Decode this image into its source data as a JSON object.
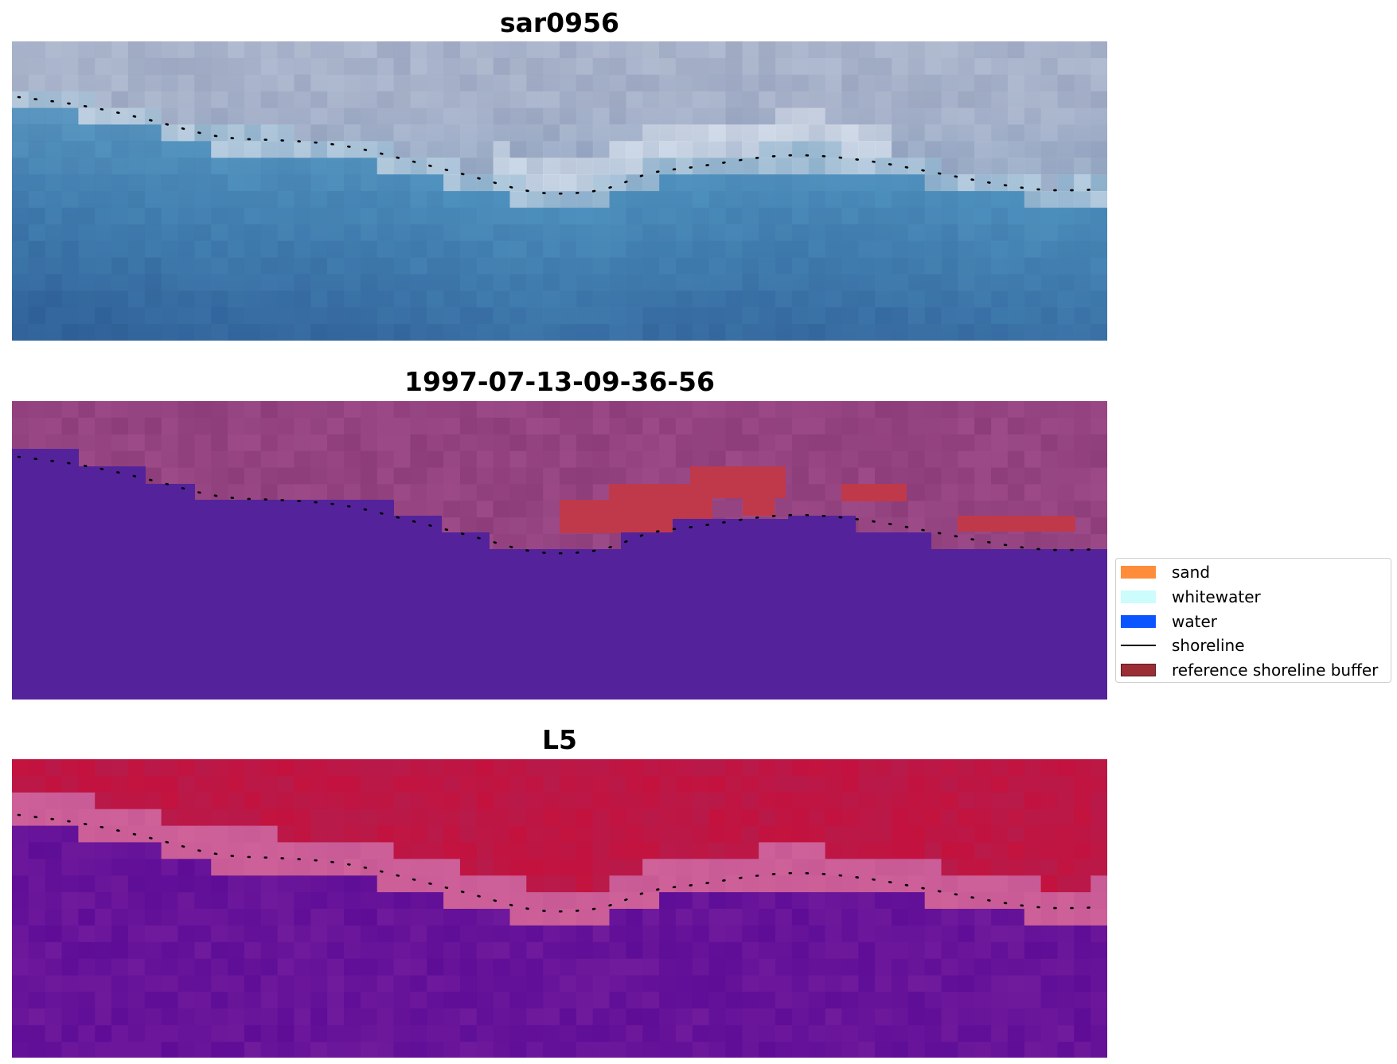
{
  "panels": [
    {
      "title": "sar0956"
    },
    {
      "title": "1997-07-13-09-36-56"
    },
    {
      "title": "L5"
    }
  ],
  "legend": {
    "items": [
      {
        "label": "sand",
        "color": "#ff8c3a",
        "kind": "patch"
      },
      {
        "label": "whitewater",
        "color": "#ccfcfc",
        "kind": "patch"
      },
      {
        "label": "water",
        "color": "#0a55ff",
        "kind": "patch"
      },
      {
        "label": "shoreline",
        "color": "#000000",
        "kind": "line"
      },
      {
        "label": "reference shoreline buffer",
        "color": "#9b2e35",
        "kind": "patch"
      }
    ]
  },
  "colors": {
    "classified_water": "#54239b",
    "classified_land": "#9c4a88",
    "classified_buffer": "#c0394a",
    "ndwi_land": "#c2123c",
    "ndwi_water": "#6e1a9c",
    "shoreline": "#000000"
  }
}
